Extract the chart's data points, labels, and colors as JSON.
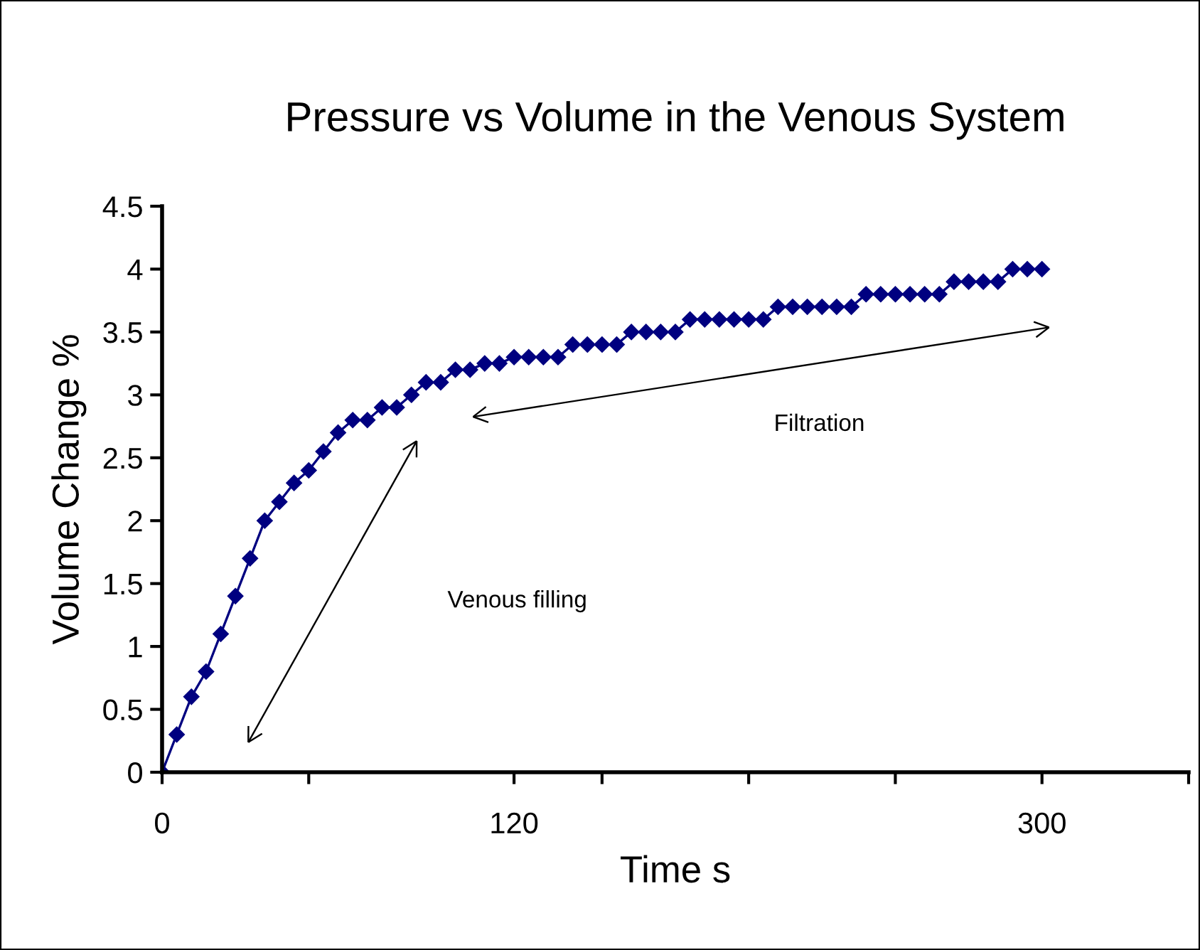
{
  "chart_data": {
    "type": "line",
    "title": "Pressure vs Volume in the Venous System",
    "xlabel": "Time s",
    "ylabel": "Volume Change %",
    "xlim": [
      0,
      350
    ],
    "xticks": [
      0,
      {
        "value": 50,
        "label": null
      },
      120,
      {
        "value": 150,
        "label": null
      },
      {
        "value": 200,
        "label": null
      },
      {
        "value": 250,
        "label": null
      },
      300,
      {
        "value": 350,
        "label": null
      }
    ],
    "ylim": [
      0,
      4.5
    ],
    "yticks": [
      0,
      0.5,
      1,
      1.5,
      2,
      2.5,
      3,
      3.5,
      4,
      4.5
    ],
    "marker": "diamond",
    "line_style": "solid",
    "grid": false,
    "legend": false,
    "series": [
      {
        "color": "#000080",
        "x": [
          0,
          5,
          10,
          15,
          20,
          25,
          30,
          35,
          40,
          45,
          50,
          55,
          60,
          65,
          70,
          75,
          80,
          85,
          90,
          95,
          100,
          105,
          110,
          115,
          120,
          125,
          130,
          135,
          140,
          145,
          150,
          155,
          160,
          165,
          170,
          175,
          180,
          185,
          190,
          195,
          200,
          205,
          210,
          215,
          220,
          225,
          230,
          235,
          240,
          245,
          250,
          255,
          260,
          265,
          270,
          275,
          280,
          285,
          290,
          295,
          300
        ],
        "values": [
          0,
          0.3,
          0.6,
          0.8,
          1.1,
          1.4,
          1.7,
          2.0,
          2.15,
          2.3,
          2.4,
          2.55,
          2.7,
          2.8,
          2.8,
          2.9,
          2.9,
          3.0,
          3.1,
          3.1,
          3.2,
          3.2,
          3.25,
          3.25,
          3.3,
          3.3,
          3.3,
          3.3,
          3.4,
          3.4,
          3.4,
          3.4,
          3.5,
          3.5,
          3.5,
          3.5,
          3.6,
          3.6,
          3.6,
          3.6,
          3.6,
          3.6,
          3.7,
          3.7,
          3.7,
          3.7,
          3.7,
          3.7,
          3.8,
          3.8,
          3.8,
          3.8,
          3.8,
          3.8,
          3.9,
          3.9,
          3.9,
          3.9,
          4.0,
          4.0,
          4.0
        ]
      }
    ],
    "annotations": [
      "Venous filling",
      "Filtration"
    ]
  }
}
